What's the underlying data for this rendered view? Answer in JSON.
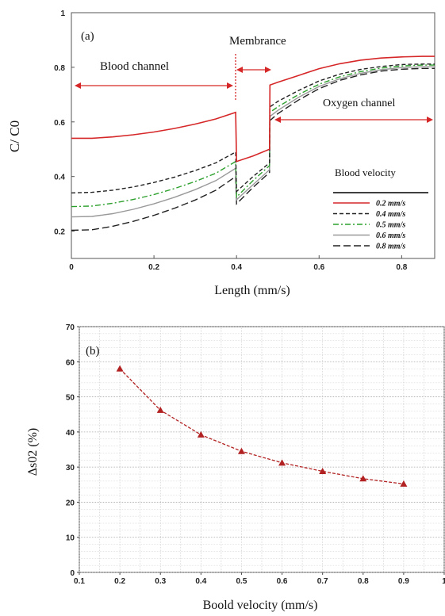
{
  "chart_data": [
    {
      "type": "line",
      "panel_label": "(a)",
      "xlabel": "Length (mm/s)",
      "ylabel": "C/ C0",
      "xlim": [
        0,
        0.88
      ],
      "ylim": [
        0.1,
        1.0
      ],
      "x_ticks": [
        "0",
        "0.2",
        "0.4",
        "0.6",
        "0.8"
      ],
      "y_ticks": [
        "1",
        "0.8",
        "0.6",
        "0.4",
        "0.2"
      ],
      "annotations": {
        "blood_channel": "Blood channel",
        "membrane": "Membrance",
        "oxygen_channel": "Oxygen channel"
      },
      "legend_title": "Blood velocity",
      "legend_position": "lower-right",
      "series": [
        {
          "name": "0.2 mm/s",
          "color": "#d62728",
          "dash": "solid",
          "x": [
            0,
            0.05,
            0.1,
            0.15,
            0.2,
            0.25,
            0.3,
            0.35,
            0.398,
            0.4,
            0.44,
            0.48,
            0.481,
            0.5,
            0.55,
            0.6,
            0.65,
            0.7,
            0.75,
            0.8,
            0.85,
            0.88
          ],
          "y": [
            0.54,
            0.54,
            0.545,
            0.553,
            0.563,
            0.576,
            0.592,
            0.611,
            0.635,
            0.455,
            0.475,
            0.5,
            0.735,
            0.745,
            0.77,
            0.795,
            0.813,
            0.826,
            0.834,
            0.838,
            0.84,
            0.84
          ]
        },
        {
          "name": "0.4 mm/s",
          "color": "#222222",
          "dash": "5,3",
          "x": [
            0,
            0.05,
            0.1,
            0.15,
            0.2,
            0.25,
            0.3,
            0.35,
            0.398,
            0.4,
            0.44,
            0.48,
            0.481,
            0.5,
            0.55,
            0.6,
            0.65,
            0.7,
            0.75,
            0.8,
            0.85,
            0.88
          ],
          "y": [
            0.34,
            0.342,
            0.35,
            0.362,
            0.378,
            0.398,
            0.422,
            0.45,
            0.49,
            0.345,
            0.4,
            0.45,
            0.655,
            0.675,
            0.715,
            0.75,
            0.775,
            0.792,
            0.803,
            0.81,
            0.812,
            0.812
          ]
        },
        {
          "name": "0.5 mm/s",
          "color": "#2ca02c",
          "dash": "7,3,2,3",
          "x": [
            0,
            0.05,
            0.1,
            0.15,
            0.2,
            0.25,
            0.3,
            0.35,
            0.398,
            0.4,
            0.44,
            0.48,
            0.481,
            0.5,
            0.55,
            0.6,
            0.65,
            0.7,
            0.75,
            0.8,
            0.85,
            0.88
          ],
          "y": [
            0.29,
            0.292,
            0.302,
            0.316,
            0.334,
            0.356,
            0.382,
            0.412,
            0.455,
            0.325,
            0.385,
            0.44,
            0.635,
            0.655,
            0.7,
            0.738,
            0.765,
            0.784,
            0.797,
            0.805,
            0.808,
            0.808
          ]
        },
        {
          "name": "0.6 mm/s",
          "color": "#999999",
          "dash": "solid",
          "x": [
            0,
            0.05,
            0.1,
            0.15,
            0.2,
            0.25,
            0.3,
            0.35,
            0.398,
            0.4,
            0.44,
            0.48,
            0.481,
            0.5,
            0.55,
            0.6,
            0.65,
            0.7,
            0.75,
            0.8,
            0.85,
            0.88
          ],
          "y": [
            0.252,
            0.254,
            0.264,
            0.28,
            0.3,
            0.324,
            0.352,
            0.385,
            0.43,
            0.315,
            0.37,
            0.425,
            0.62,
            0.642,
            0.69,
            0.73,
            0.758,
            0.778,
            0.791,
            0.799,
            0.802,
            0.802
          ]
        },
        {
          "name": "0.8 mm/s",
          "color": "#222222",
          "dash": "9,4",
          "x": [
            0,
            0.05,
            0.1,
            0.15,
            0.2,
            0.25,
            0.3,
            0.35,
            0.398,
            0.4,
            0.44,
            0.48,
            0.481,
            0.5,
            0.55,
            0.6,
            0.65,
            0.7,
            0.75,
            0.8,
            0.85,
            0.88
          ],
          "y": [
            0.203,
            0.205,
            0.218,
            0.236,
            0.258,
            0.284,
            0.314,
            0.35,
            0.4,
            0.3,
            0.36,
            0.415,
            0.605,
            0.63,
            0.68,
            0.722,
            0.752,
            0.772,
            0.786,
            0.793,
            0.796,
            0.796
          ]
        }
      ]
    },
    {
      "type": "line",
      "panel_label": "(b)",
      "xlabel": "Boold velocity (mm/s)",
      "ylabel": "Δs02 (%)",
      "xlim": [
        0.1,
        1.0
      ],
      "ylim": [
        0,
        70
      ],
      "x_ticks": [
        "0.1",
        "0.2",
        "0.3",
        "0.4",
        "0.5",
        "0.6",
        "0.7",
        "0.8",
        "0.9",
        "1"
      ],
      "y_ticks": [
        "0",
        "10",
        "20",
        "30",
        "40",
        "50",
        "60",
        "70"
      ],
      "grid": true,
      "series": [
        {
          "color": "#b22222",
          "marker": "triangle",
          "dash": "4,2",
          "x": [
            0.2,
            0.3,
            0.4,
            0.5,
            0.6,
            0.7,
            0.8,
            0.9
          ],
          "y": [
            58.0,
            46.2,
            39.2,
            34.5,
            31.2,
            28.8,
            26.7,
            25.2
          ]
        }
      ]
    }
  ]
}
